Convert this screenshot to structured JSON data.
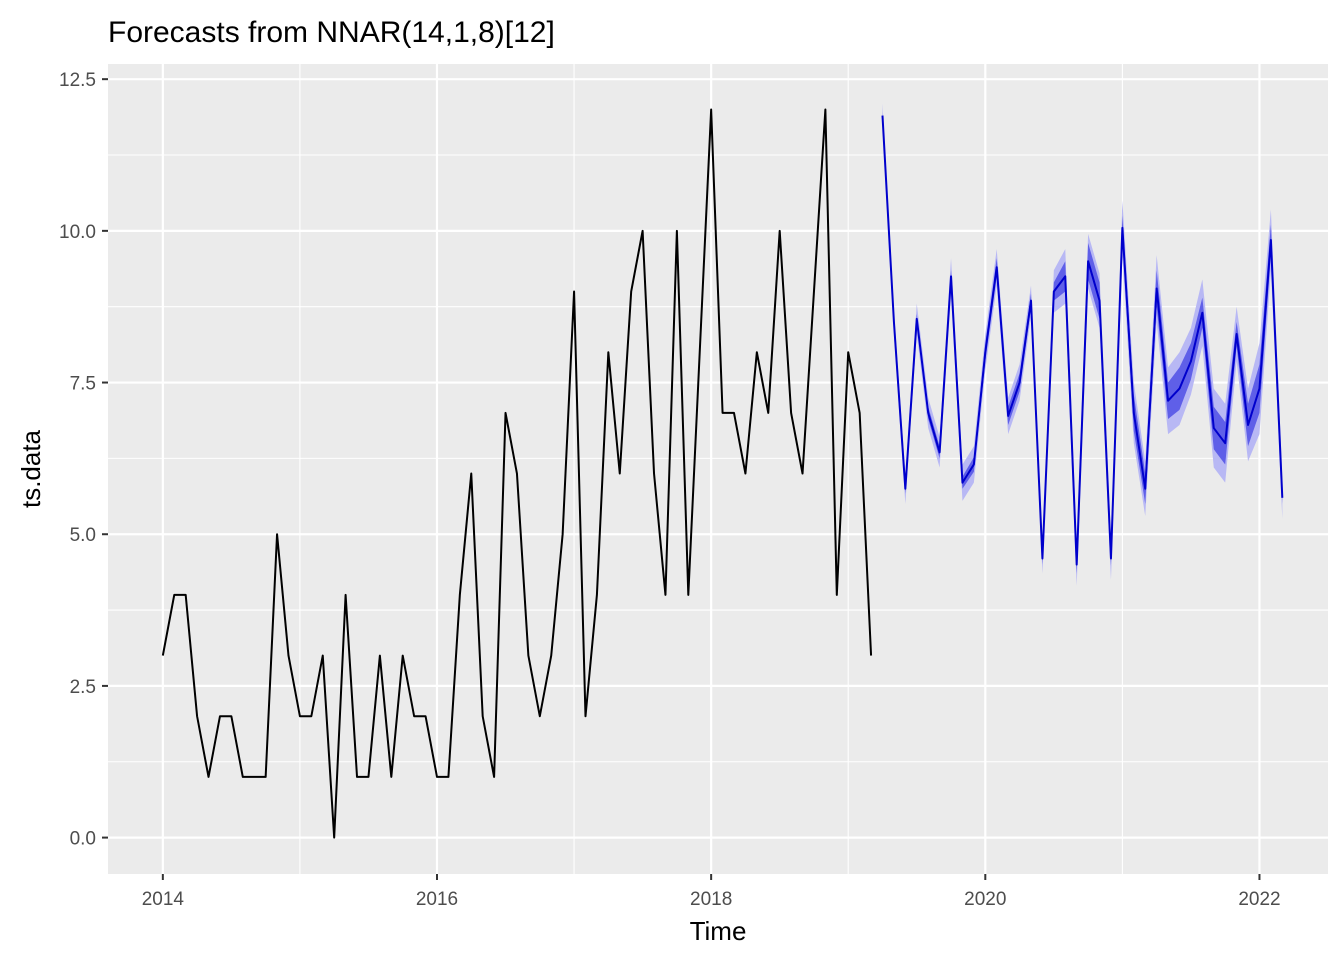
{
  "chart_data": {
    "type": "line",
    "title": "Forecasts from NNAR(14,1,8)[12]",
    "xlabel": "Time",
    "ylabel": "ts.data",
    "xlim": [
      2013.6,
      2022.5
    ],
    "ylim": [
      -0.6,
      12.75
    ],
    "x_ticks": [
      2014,
      2016,
      2018,
      2020,
      2022
    ],
    "x_tick_labels": [
      "2014",
      "2016",
      "2018",
      "2020",
      "2022"
    ],
    "y_ticks": [
      0,
      2.5,
      5,
      7.5,
      10,
      12.5
    ],
    "y_tick_labels": [
      "0.0",
      "2.5",
      "5.0",
      "7.5",
      "10.0",
      "12.5"
    ],
    "grid": true,
    "legend": "none",
    "colors": {
      "panel": "#ebebeb",
      "grid": "#ffffff",
      "observed": "#000000",
      "forecast": "#0000cc",
      "interval_80": "#5f5fe8",
      "interval_95": "#b8b8f4"
    },
    "observed": {
      "start": [
        2014,
        1
      ],
      "frequency": 12,
      "values": [
        3,
        4,
        4,
        2,
        1,
        2,
        2,
        1,
        1,
        1,
        5,
        3,
        2,
        2,
        3,
        0,
        4,
        1,
        1,
        3,
        1,
        3,
        2,
        2,
        1,
        1,
        4,
        6,
        2,
        1,
        7,
        6,
        3,
        2,
        3,
        5,
        9,
        2,
        4,
        8,
        6,
        9,
        10,
        6,
        4,
        10,
        4,
        8,
        12,
        7,
        7,
        6,
        8,
        7,
        10,
        7,
        6,
        9,
        12,
        4,
        8,
        7,
        3
      ]
    },
    "forecast": {
      "start": [
        2019,
        4
      ],
      "frequency": 12,
      "values": [
        11.9,
        8.5,
        5.75,
        8.55,
        7.0,
        6.35,
        9.25,
        5.85,
        6.15,
        8.0,
        9.4,
        6.95,
        7.5,
        8.85,
        4.6,
        9.0,
        9.25,
        4.5,
        9.5,
        8.85,
        4.6,
        10.05,
        7.0,
        5.75,
        9.05,
        7.2,
        7.4,
        7.85,
        8.65,
        6.75,
        6.5,
        8.3,
        6.8,
        7.4,
        9.85,
        5.6
      ],
      "interval_80_halfwidth": [
        0.05,
        0.05,
        0.08,
        0.08,
        0.1,
        0.1,
        0.1,
        0.1,
        0.12,
        0.15,
        0.15,
        0.15,
        0.15,
        0.12,
        0.1,
        0.15,
        0.25,
        0.15,
        0.3,
        0.3,
        0.12,
        0.2,
        0.3,
        0.25,
        0.3,
        0.3,
        0.35,
        0.3,
        0.25,
        0.35,
        0.35,
        0.2,
        0.35,
        0.4,
        0.25,
        0.1
      ],
      "interval_95_halfwidth": [
        0.2,
        0.2,
        0.25,
        0.25,
        0.25,
        0.25,
        0.3,
        0.3,
        0.3,
        0.3,
        0.3,
        0.3,
        0.3,
        0.25,
        0.25,
        0.35,
        0.45,
        0.35,
        0.45,
        0.45,
        0.35,
        0.45,
        0.5,
        0.45,
        0.55,
        0.55,
        0.6,
        0.55,
        0.55,
        0.65,
        0.65,
        0.45,
        0.6,
        0.75,
        0.5,
        0.35
      ]
    }
  }
}
